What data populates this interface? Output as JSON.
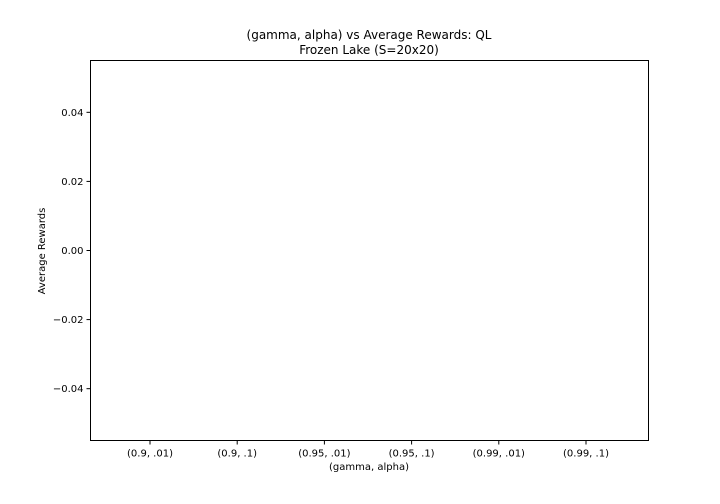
{
  "chart_data": {
    "type": "bar",
    "title": "(gamma, alpha) vs Average Rewards: QL",
    "subtitle": "Frozen Lake (S=20x20)",
    "xlabel": "(gamma, alpha)",
    "ylabel": "Average Rewards",
    "categories": [
      "(0.9, .01)",
      "(0.9, .1)",
      "(0.95, .01)",
      "(0.95, .1)",
      "(0.99, .01)",
      "(0.99, .1)"
    ],
    "values": [
      0,
      0,
      0,
      0,
      0,
      0
    ],
    "ylim": [
      -0.055,
      0.055
    ],
    "yticks": [
      -0.04,
      -0.02,
      0.0,
      0.02,
      0.04
    ],
    "ytick_labels": [
      "−0.04",
      "−0.02",
      "0.00",
      "0.02",
      "0.04"
    ],
    "grid": false,
    "bar_color": "#1f77b4"
  }
}
